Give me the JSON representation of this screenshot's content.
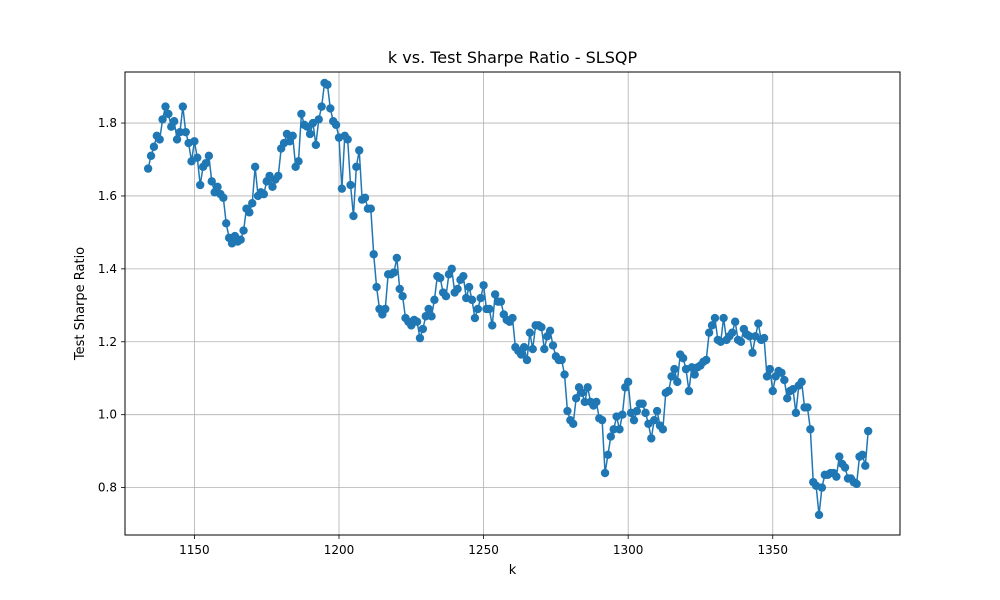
{
  "chart_data": {
    "type": "line",
    "title": "k vs. Test Sharpe Ratio - SLSQP",
    "xlabel": "k",
    "ylabel": "Test Sharpe Ratio",
    "xlim": [
      1126,
      1394
    ],
    "ylim": [
      0.67,
      1.94
    ],
    "xticks": [
      1150,
      1200,
      1250,
      1300,
      1350
    ],
    "yticks": [
      0.8,
      1.0,
      1.2,
      1.4,
      1.6,
      1.8
    ],
    "xtick_labels": [
      "1150",
      "1200",
      "1250",
      "1300",
      "1350"
    ],
    "ytick_labels": [
      "0.8",
      "1.0",
      "1.2",
      "1.4",
      "1.6",
      "1.8"
    ],
    "grid": true,
    "marker": "circle",
    "color": "#1f77b4",
    "series": [
      {
        "x_start": 1134,
        "x_step": 1,
        "values": [
          1.675,
          1.71,
          1.735,
          1.765,
          1.755,
          1.81,
          1.845,
          1.825,
          1.79,
          1.805,
          1.755,
          1.775,
          1.845,
          1.775,
          1.745,
          1.695,
          1.75,
          1.705,
          1.63,
          1.68,
          1.69,
          1.71,
          1.64,
          1.61,
          1.625,
          1.605,
          1.595,
          1.525,
          1.485,
          1.47,
          1.49,
          1.475,
          1.48,
          1.505,
          1.565,
          1.555,
          1.58,
          1.68,
          1.6,
          1.61,
          1.605,
          1.64,
          1.655,
          1.625,
          1.645,
          1.655,
          1.73,
          1.745,
          1.77,
          1.75,
          1.765,
          1.68,
          1.695,
          1.825,
          1.795,
          1.79,
          1.77,
          1.8,
          1.74,
          1.81,
          1.845,
          1.91,
          1.905,
          1.84,
          1.805,
          1.795,
          1.76,
          1.62,
          1.765,
          1.755,
          1.63,
          1.545,
          1.68,
          1.725,
          1.59,
          1.595,
          1.565,
          1.565,
          1.44,
          1.35,
          1.29,
          1.275,
          1.29,
          1.385,
          1.385,
          1.39,
          1.43,
          1.345,
          1.325,
          1.265,
          1.255,
          1.245,
          1.26,
          1.255,
          1.21,
          1.235,
          1.27,
          1.29,
          1.27,
          1.315,
          1.38,
          1.375,
          1.335,
          1.325,
          1.385,
          1.4,
          1.335,
          1.345,
          1.37,
          1.38,
          1.32,
          1.35,
          1.315,
          1.265,
          1.29,
          1.32,
          1.355,
          1.29,
          1.29,
          1.245,
          1.33,
          1.31,
          1.31,
          1.275,
          1.26,
          1.255,
          1.265,
          1.185,
          1.175,
          1.165,
          1.185,
          1.15,
          1.225,
          1.18,
          1.245,
          1.245,
          1.24,
          1.18,
          1.215,
          1.23,
          1.19,
          1.16,
          1.15,
          1.15,
          1.11,
          1.01,
          0.985,
          0.975,
          1.045,
          1.075,
          1.06,
          1.035,
          1.075,
          1.035,
          1.025,
          1.035,
          0.99,
          0.985,
          0.84,
          0.89,
          0.94,
          0.96,
          0.995,
          0.96,
          1.0,
          1.075,
          1.09,
          1.005,
          0.985,
          1.01,
          1.03,
          1.03,
          1.005,
          0.975,
          0.935,
          0.985,
          1.01,
          0.97,
          0.96,
          1.06,
          1.065,
          1.105,
          1.125,
          1.09,
          1.165,
          1.155,
          1.125,
          1.065,
          1.13,
          1.11,
          1.13,
          1.135,
          1.145,
          1.15,
          1.225,
          1.245,
          1.265,
          1.205,
          1.2,
          1.265,
          1.205,
          1.215,
          1.225,
          1.255,
          1.205,
          1.2,
          1.235,
          1.22,
          1.215,
          1.17,
          1.215,
          1.25,
          1.205,
          1.21,
          1.105,
          1.125,
          1.065,
          1.105,
          1.12,
          1.115,
          1.095,
          1.045,
          1.065,
          1.07,
          1.005,
          1.08,
          1.09,
          1.02,
          1.02,
          0.96,
          0.815,
          0.805,
          0.725,
          0.8,
          0.835,
          0.835,
          0.84,
          0.84,
          0.83,
          0.885,
          0.865,
          0.855,
          0.825,
          0.825,
          0.815,
          0.81,
          0.885,
          0.89,
          0.86,
          0.955
        ]
      }
    ]
  }
}
